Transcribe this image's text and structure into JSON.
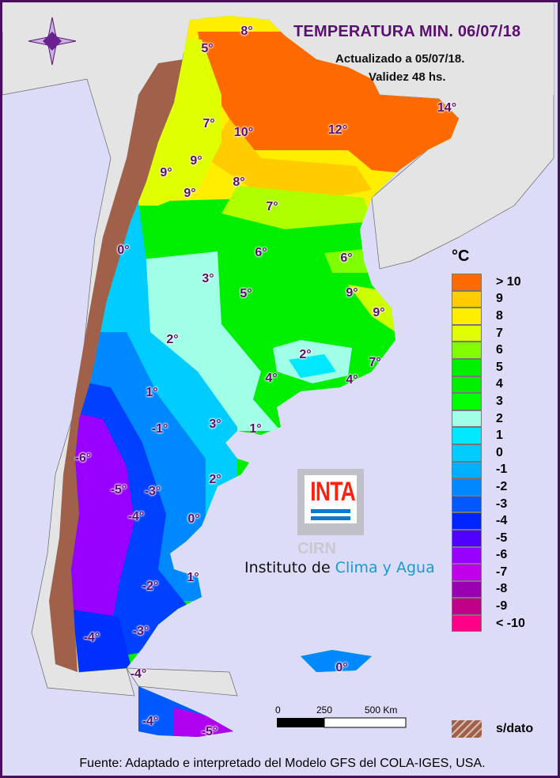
{
  "title": "TEMPERATURA MIN. 06/07/18",
  "updated": "Actualizado a 05/07/18.",
  "validity": "Validez 48 hs.",
  "unit": "°C",
  "legend": [
    {
      "label": "> 10",
      "color": "#ff6a00"
    },
    {
      "label": "9",
      "color": "#ffcc00"
    },
    {
      "label": "8",
      "color": "#ffee00"
    },
    {
      "label": "7",
      "color": "#e0ff00"
    },
    {
      "label": "6",
      "color": "#80ff00"
    },
    {
      "label": "5",
      "color": "#00ee00"
    },
    {
      "label": "4",
      "color": "#00f000"
    },
    {
      "label": "3",
      "color": "#00ff00"
    },
    {
      "label": "2",
      "color": "#a0ffe6"
    },
    {
      "label": "1",
      "color": "#00e8ff"
    },
    {
      "label": "0",
      "color": "#00ccff"
    },
    {
      "label": "-1",
      "color": "#00b0ff"
    },
    {
      "label": "-2",
      "color": "#0088ff"
    },
    {
      "label": "-3",
      "color": "#0058ff"
    },
    {
      "label": "-4",
      "color": "#0024ff"
    },
    {
      "label": "-5",
      "color": "#5000ff"
    },
    {
      "label": "-6",
      "color": "#9800ff"
    },
    {
      "label": "-7",
      "color": "#c000e8"
    },
    {
      "label": "-8",
      "color": "#9800b0"
    },
    {
      "label": "-9",
      "color": "#c00088"
    },
    {
      "label": "< -10",
      "color": "#ff0088"
    }
  ],
  "no_data_label": "s/dato",
  "scale": {
    "labels": [
      "0",
      "250",
      "500 Km"
    ]
  },
  "logo": {
    "inta": "INTA",
    "cirn": "CIRN",
    "institute_prefix": "Instituto de ",
    "institute_highlight": "Clima y Agua"
  },
  "footer": "Fuente: Adaptado e interpretado del Modelo GFS del COLA-IGES, USA.",
  "temperature_labels": [
    "8°",
    "5°",
    "14°",
    "7°",
    "10°",
    "12°",
    "9°",
    "9°",
    "9°",
    "8°",
    "7°",
    "0°",
    "6°",
    "6°",
    "3°",
    "5°",
    "9°",
    "9°",
    "2°",
    "2°",
    "7°",
    "4°",
    "4°",
    "1°",
    "-1°",
    "3°",
    "1°",
    "-6°",
    "2°",
    "-5°",
    "-3°",
    "-4°",
    "0°",
    "1°",
    "-2°",
    "-3°",
    "-4°",
    "-4°",
    "0°",
    "-4°",
    "-5°"
  ]
}
